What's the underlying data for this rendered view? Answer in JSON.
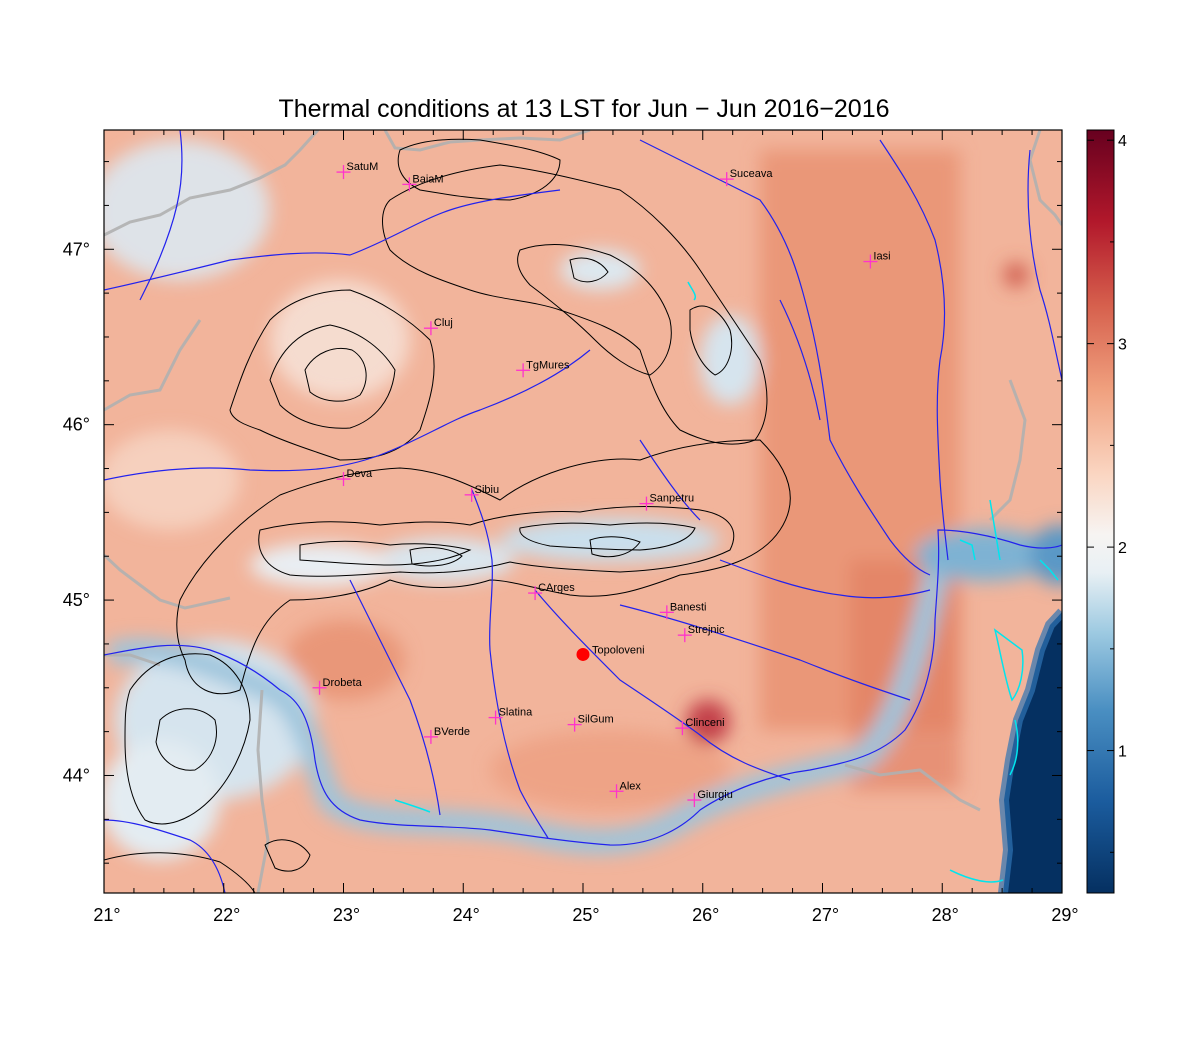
{
  "title": "Thermal conditions at 13 LST for Jun − Jun  2016−2016",
  "map": {
    "lon_range": [
      21,
      29
    ],
    "lat_range": [
      43.33,
      47.68
    ],
    "x_tick_labels": [
      "21°",
      "22°",
      "23°",
      "24°",
      "25°",
      "26°",
      "27°",
      "28°",
      "29°"
    ],
    "x_tick_values": [
      21,
      22,
      23,
      24,
      25,
      26,
      27,
      28,
      29
    ],
    "y_tick_labels": [
      "44°",
      "45°",
      "46°",
      "47°"
    ],
    "y_tick_values": [
      44,
      45,
      46,
      47
    ]
  },
  "colorbar": {
    "labels": [
      "1",
      "2",
      "3",
      "4"
    ],
    "values": [
      1,
      2,
      3,
      4
    ],
    "range": [
      0.3,
      4.05
    ],
    "colormap": [
      "#053061",
      "#2166ac",
      "#4393c3",
      "#92c5de",
      "#d1e5f0",
      "#f7f7f7",
      "#fddbc7",
      "#f4a582",
      "#d6604d",
      "#b2182b",
      "#67001f"
    ]
  },
  "cities": [
    {
      "name": "SatuM",
      "lon": 23.0,
      "lat": 47.44
    },
    {
      "name": "BaiaM",
      "lon": 23.55,
      "lat": 47.37
    },
    {
      "name": "Suceava",
      "lon": 26.2,
      "lat": 47.4
    },
    {
      "name": "Iasi",
      "lon": 27.4,
      "lat": 46.93
    },
    {
      "name": "Cluj",
      "lon": 23.73,
      "lat": 46.55
    },
    {
      "name": "TgMures",
      "lon": 24.5,
      "lat": 46.31
    },
    {
      "name": "Deva",
      "lon": 23.0,
      "lat": 45.69
    },
    {
      "name": "Sibiu",
      "lon": 24.07,
      "lat": 45.6
    },
    {
      "name": "Sanpetru",
      "lon": 25.53,
      "lat": 45.55
    },
    {
      "name": "CArges",
      "lon": 24.6,
      "lat": 45.04
    },
    {
      "name": "Banesti",
      "lon": 25.7,
      "lat": 44.93
    },
    {
      "name": "Strejnic",
      "lon": 25.85,
      "lat": 44.8
    },
    {
      "name": "Drobeta",
      "lon": 22.8,
      "lat": 44.5
    },
    {
      "name": "Slatina",
      "lon": 24.27,
      "lat": 44.33
    },
    {
      "name": "SilGum",
      "lon": 24.93,
      "lat": 44.29
    },
    {
      "name": "Clinceni",
      "lon": 25.83,
      "lat": 44.27
    },
    {
      "name": "BVerde",
      "lon": 23.73,
      "lat": 44.22
    },
    {
      "name": "Alex",
      "lon": 25.28,
      "lat": 43.91
    },
    {
      "name": "Giurgiu",
      "lon": 25.93,
      "lat": 43.86
    }
  ],
  "highlight": {
    "name": "Topoloveni",
    "lon": 25.0,
    "lat": 44.69,
    "color": "#ff0000"
  },
  "colors": {
    "marker": "#ff33cc",
    "rivers": "#2222ee",
    "borders": "#aaaaaa",
    "contours": "#000000",
    "lakes": "#00e5ee",
    "sea": "#053061"
  }
}
